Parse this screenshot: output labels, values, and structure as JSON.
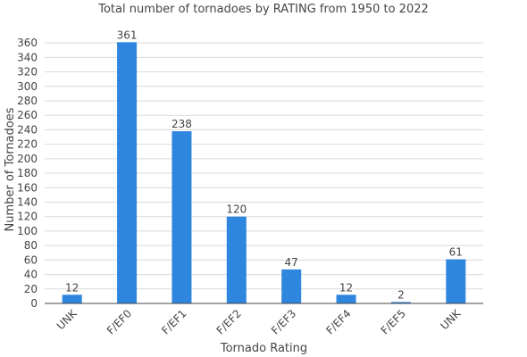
{
  "chart_data": {
    "type": "bar",
    "title": "Total number of tornadoes by RATING from 1950 to 2022",
    "xlabel": "Tornado Rating",
    "ylabel": "Number of Tornadoes",
    "categories": [
      "UNK",
      "F/EF0",
      "F/EF1",
      "F/EF2",
      "F/EF3",
      "F/EF4",
      "F/EF5",
      "UNK"
    ],
    "values": [
      12,
      361,
      238,
      120,
      47,
      12,
      2,
      61
    ],
    "ylim": [
      0,
      370
    ],
    "yticks": [
      0,
      20,
      40,
      60,
      80,
      100,
      120,
      140,
      160,
      180,
      200,
      220,
      240,
      260,
      280,
      300,
      320,
      340,
      360
    ],
    "grid": true,
    "legend": "none",
    "bar_color": "#2e86de"
  }
}
